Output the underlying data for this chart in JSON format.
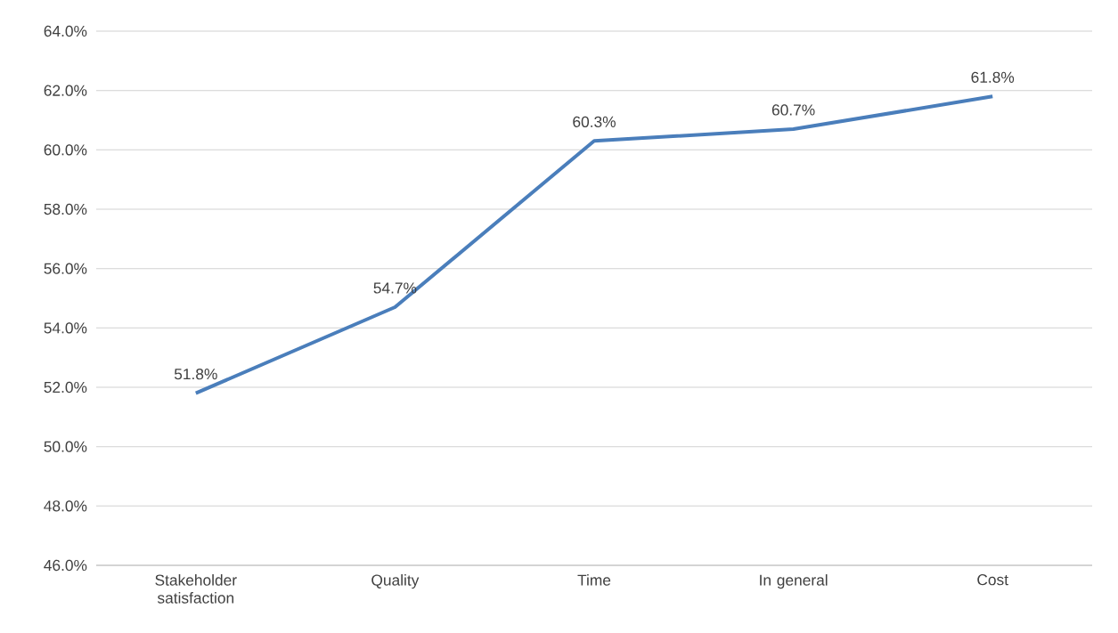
{
  "chart_data": {
    "type": "line",
    "categories": [
      "Stakeholder satisfaction",
      "Quality",
      "Time",
      "In general",
      "Cost"
    ],
    "values": [
      51.8,
      54.7,
      60.3,
      60.7,
      61.8
    ],
    "value_labels": [
      "51.8%",
      "54.7%",
      "60.3%",
      "60.7%",
      "61.8%"
    ],
    "color": "#4a7ebb",
    "ylim": [
      46,
      64
    ],
    "yticks": [
      {
        "value": 46,
        "label": "46.0%"
      },
      {
        "value": 48,
        "label": "48.0%"
      },
      {
        "value": 50,
        "label": "50.0%"
      },
      {
        "value": 52,
        "label": "52.0%"
      },
      {
        "value": 54,
        "label": "54.0%"
      },
      {
        "value": 56,
        "label": "56.0%"
      },
      {
        "value": 58,
        "label": "58.0%"
      },
      {
        "value": 60,
        "label": "60.0%"
      },
      {
        "value": 62,
        "label": "62.0%"
      },
      {
        "value": 64,
        "label": "64.0%"
      }
    ],
    "grid": "y"
  }
}
